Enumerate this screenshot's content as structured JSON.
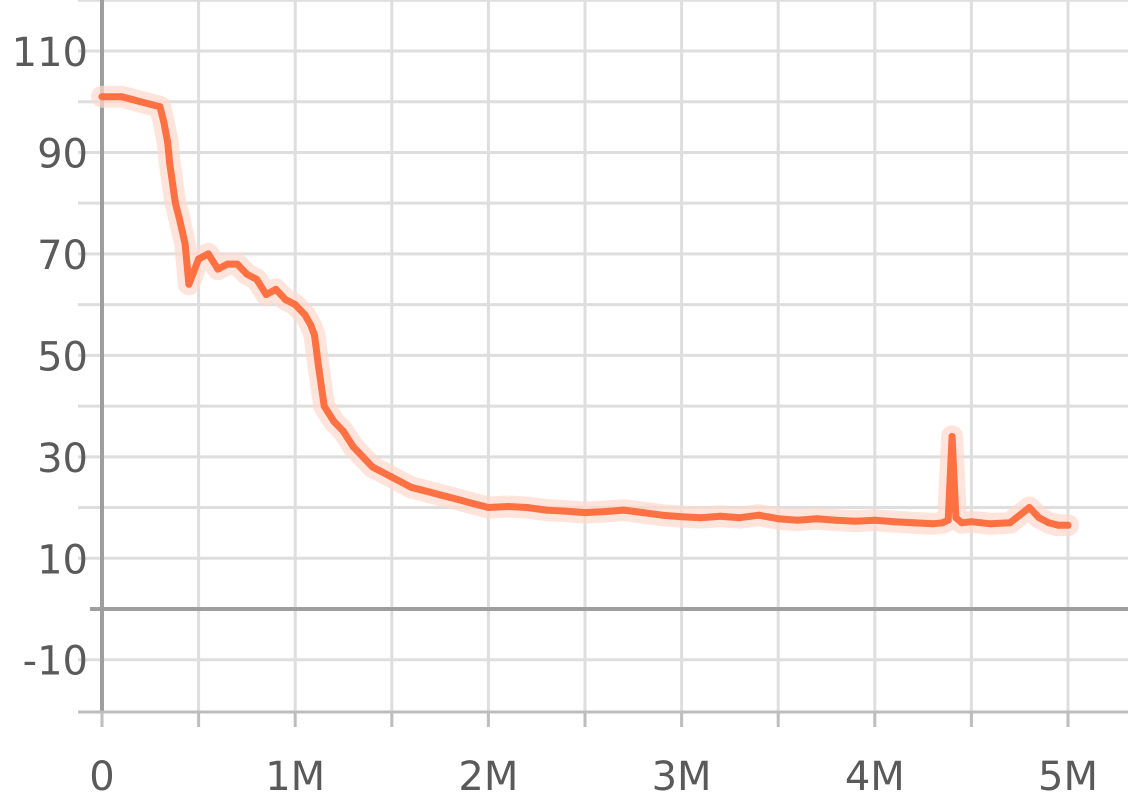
{
  "chart_data": {
    "type": "line",
    "title": "",
    "xlabel": "",
    "ylabel": "",
    "xlim": [
      0,
      5150000
    ],
    "ylim": [
      -20,
      120
    ],
    "grid": true,
    "x_ticks": [
      {
        "value": 0,
        "label": "0"
      },
      {
        "value": 1000000,
        "label": "1M"
      },
      {
        "value": 2000000,
        "label": "2M"
      },
      {
        "value": 3000000,
        "label": "3M"
      },
      {
        "value": 4000000,
        "label": "4M"
      },
      {
        "value": 5000000,
        "label": "5M"
      }
    ],
    "y_ticks": [
      {
        "value": 110,
        "label": "110"
      },
      {
        "value": 90,
        "label": "90"
      },
      {
        "value": 70,
        "label": "70"
      },
      {
        "value": 50,
        "label": "50"
      },
      {
        "value": 30,
        "label": "30"
      },
      {
        "value": 10,
        "label": "10"
      },
      {
        "value": -10,
        "label": "-10"
      }
    ],
    "colors": {
      "line": "#ff7043",
      "raw": "#ffd9cc",
      "grid": "#dedede",
      "axis": "#9e9e9e"
    },
    "series": [
      {
        "x": [
          0,
          100000,
          150000,
          200000,
          250000,
          300000,
          320000,
          340000,
          350000,
          380000,
          400000,
          430000,
          450000,
          470000,
          500000,
          550000,
          600000,
          650000,
          700000,
          750000,
          800000,
          850000,
          900000,
          950000,
          1000000,
          1050000,
          1080000,
          1100000,
          1120000,
          1150000,
          1200000,
          1250000,
          1300000,
          1350000,
          1400000,
          1450000,
          1500000,
          1550000,
          1600000,
          1650000,
          1700000,
          1750000,
          1800000,
          1850000,
          1900000,
          1950000,
          2000000,
          2100000,
          2200000,
          2300000,
          2400000,
          2500000,
          2600000,
          2700000,
          2800000,
          2900000,
          3000000,
          3100000,
          3200000,
          3300000,
          3400000,
          3500000,
          3600000,
          3700000,
          3800000,
          3900000,
          4000000,
          4100000,
          4200000,
          4300000,
          4350000,
          4380000,
          4400000,
          4420000,
          4450000,
          4500000,
          4550000,
          4600000,
          4700000,
          4750000,
          4800000,
          4850000,
          4900000,
          4950000,
          5000000
        ],
        "y": [
          101,
          101,
          100.5,
          100,
          99.5,
          99,
          96,
          92,
          88,
          80,
          77,
          72,
          64,
          66,
          69,
          70,
          67,
          68,
          68,
          66,
          65,
          62,
          63,
          61,
          60,
          58,
          56,
          54,
          48,
          40,
          37,
          35,
          32,
          30,
          28,
          27,
          26,
          25,
          24,
          23.5,
          23,
          22.5,
          22,
          21.5,
          21,
          20.5,
          20,
          20.2,
          20,
          19.5,
          19.3,
          19,
          19.2,
          19.5,
          19,
          18.5,
          18.2,
          18,
          18.3,
          18,
          18.5,
          17.8,
          17.5,
          17.8,
          17.5,
          17.3,
          17.5,
          17.2,
          17,
          16.8,
          17,
          17.5,
          34,
          18,
          17,
          17.2,
          17,
          16.8,
          17,
          18.5,
          20,
          18,
          17,
          16.5,
          16.5
        ]
      }
    ]
  }
}
